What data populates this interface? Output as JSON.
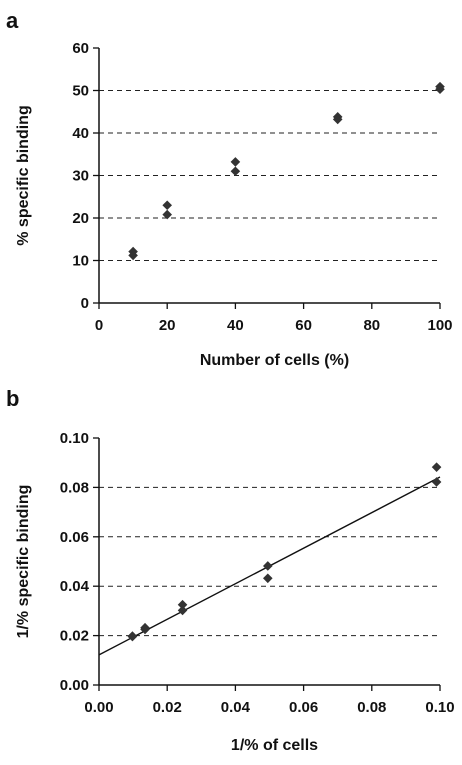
{
  "chart_data": [
    {
      "panel": "a",
      "type": "scatter",
      "xlabel": "Number of cells (%)",
      "ylabel": "% specific binding",
      "xlim": [
        0,
        100
      ],
      "ylim": [
        0,
        60
      ],
      "xticks": [
        "0",
        "20",
        "40",
        "60",
        "80",
        "100"
      ],
      "yticks": [
        "0",
        "10",
        "20",
        "30",
        "40",
        "50",
        "60"
      ],
      "grid": "horizontal dashed",
      "points": [
        {
          "x": 10,
          "y": 12.1
        },
        {
          "x": 10,
          "y": 11.2
        },
        {
          "x": 20,
          "y": 23.0
        },
        {
          "x": 20,
          "y": 20.8
        },
        {
          "x": 40,
          "y": 33.2
        },
        {
          "x": 40,
          "y": 31.0
        },
        {
          "x": 70,
          "y": 43.8
        },
        {
          "x": 70,
          "y": 43.2
        },
        {
          "x": 100,
          "y": 50.9
        },
        {
          "x": 100,
          "y": 50.3
        }
      ]
    },
    {
      "panel": "b",
      "type": "scatter",
      "xlabel": "1/% of cells",
      "ylabel": "1/% specific binding",
      "xlim": [
        0,
        0.1
      ],
      "ylim": [
        0,
        0.1
      ],
      "xticks": [
        "0.00",
        "0.02",
        "0.04",
        "0.06",
        "0.08",
        "0.10"
      ],
      "yticks": [
        "0.00",
        "0.02",
        "0.04",
        "0.06",
        "0.08",
        "0.10"
      ],
      "grid": "horizontal dashed",
      "points": [
        {
          "x": 0.0098,
          "y": 0.0198
        },
        {
          "x": 0.0098,
          "y": 0.0196
        },
        {
          "x": 0.0135,
          "y": 0.0232
        },
        {
          "x": 0.0135,
          "y": 0.0225
        },
        {
          "x": 0.0245,
          "y": 0.0325
        },
        {
          "x": 0.0245,
          "y": 0.0302
        },
        {
          "x": 0.0495,
          "y": 0.0482
        },
        {
          "x": 0.0495,
          "y": 0.0432
        },
        {
          "x": 0.099,
          "y": 0.0882
        },
        {
          "x": 0.099,
          "y": 0.0822
        }
      ],
      "fit_line": [
        {
          "x": 0.0,
          "y": 0.0122
        },
        {
          "x": 0.1,
          "y": 0.0842
        }
      ]
    }
  ]
}
